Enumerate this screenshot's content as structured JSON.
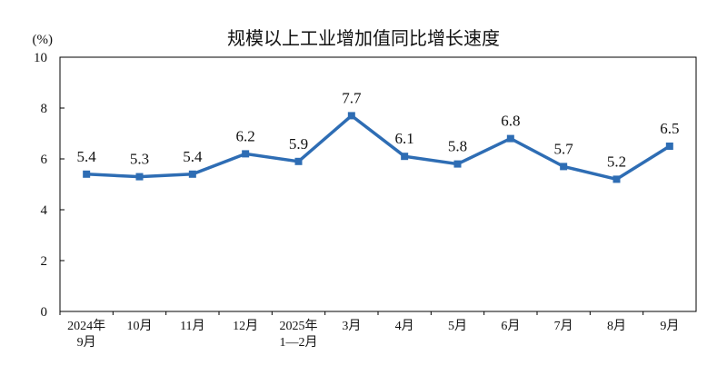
{
  "chart_data": {
    "type": "line",
    "title": "规模以上工业增加值同比增长速度",
    "ylabel": "(%)",
    "xlabel": "",
    "ylim": [
      0,
      10
    ],
    "yticks": [
      0,
      2,
      4,
      6,
      8,
      10
    ],
    "categories": [
      [
        "2024年",
        "9月"
      ],
      [
        "10月"
      ],
      [
        "11月"
      ],
      [
        "12月"
      ],
      [
        "2025年",
        "1—2月"
      ],
      [
        "3月"
      ],
      [
        "4月"
      ],
      [
        "5月"
      ],
      [
        "6月"
      ],
      [
        "7月"
      ],
      [
        "8月"
      ],
      [
        "9月"
      ]
    ],
    "series": [
      {
        "values": [
          5.4,
          5.3,
          5.4,
          6.2,
          5.9,
          7.7,
          6.1,
          5.8,
          6.8,
          5.7,
          5.2,
          6.5
        ],
        "labels": [
          "5.4",
          "5.3",
          "5.4",
          "6.2",
          "5.9",
          "7.7",
          "6.1",
          "5.8",
          "6.8",
          "5.7",
          "5.2",
          "6.5"
        ],
        "color": "#2E6DB4"
      }
    ],
    "grid": false,
    "legend": "none"
  }
}
